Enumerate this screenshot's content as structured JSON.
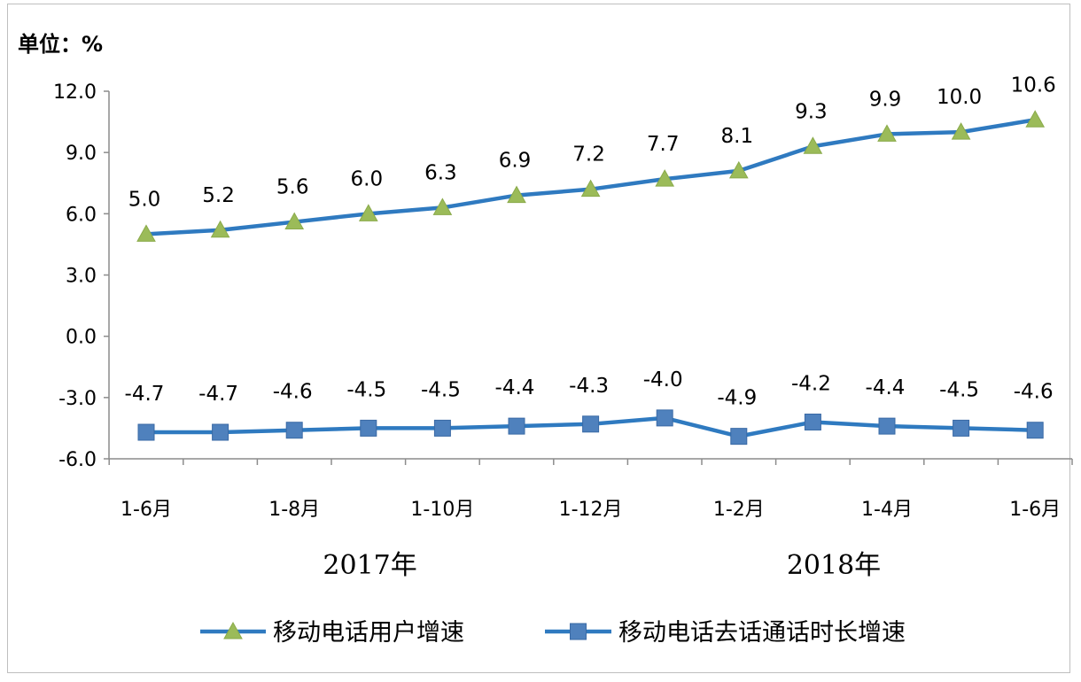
{
  "chart_data": {
    "type": "line",
    "unit_label": "单位：%",
    "categories": [
      "1-6月",
      "",
      "1-8月",
      "",
      "1-10月",
      "",
      "1-12月",
      "",
      "1-2月",
      "",
      "1-4月",
      "",
      "1-6月"
    ],
    "group_labels": [
      "2017年",
      "2018年"
    ],
    "ylim": [
      -6.0,
      12.0
    ],
    "yticks": [
      "12.0",
      "9.0",
      "6.0",
      "3.0",
      "0.0",
      "-3.0",
      "-6.0"
    ],
    "series": [
      {
        "name": "移动电话用户增速",
        "marker": "triangle",
        "color": "#2f7ac0",
        "marker_color": "#9bbb59",
        "values": [
          5.0,
          5.2,
          5.6,
          6.0,
          6.3,
          6.9,
          7.2,
          7.7,
          8.1,
          9.3,
          9.9,
          10.0,
          10.6
        ],
        "labels": [
          "5.0",
          "5.2",
          "5.6",
          "6.0",
          "6.3",
          "6.9",
          "7.2",
          "7.7",
          "8.1",
          "9.3",
          "9.9",
          "10.0",
          "10.6"
        ]
      },
      {
        "name": "移动电话去话通话时长增速",
        "marker": "square",
        "color": "#2f7ac0",
        "marker_color": "#4f81bd",
        "values": [
          -4.7,
          -4.7,
          -4.6,
          -4.5,
          -4.5,
          -4.4,
          -4.3,
          -4.0,
          -4.9,
          -4.2,
          -4.4,
          -4.5,
          -4.6
        ],
        "labels": [
          "-4.7",
          "-4.7",
          "-4.6",
          "-4.5",
          "-4.5",
          "-4.4",
          "-4.3",
          "-4.0",
          "-4.9",
          "-4.2",
          "-4.4",
          "-4.5",
          "-4.6"
        ]
      }
    ],
    "grid": false,
    "legend_position": "bottom"
  }
}
